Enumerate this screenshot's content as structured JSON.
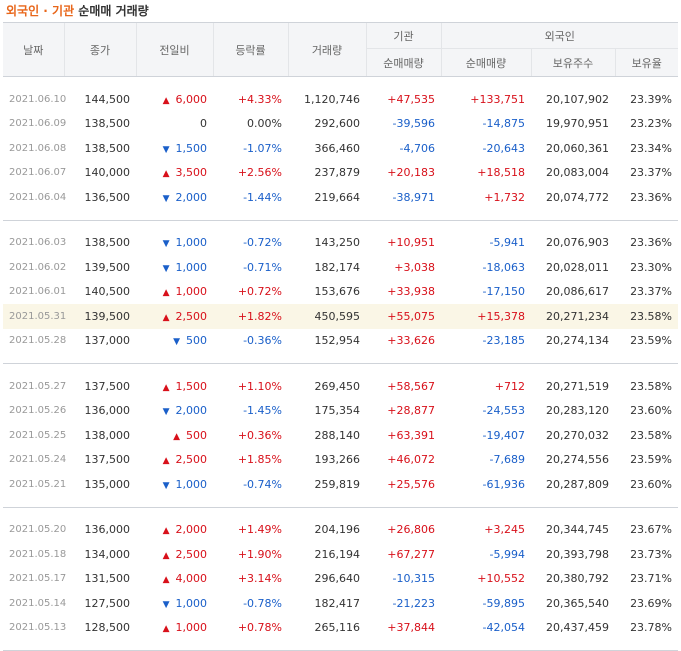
{
  "title": {
    "part1": "외국인 · 기관",
    "part2": " 순매매 거래량"
  },
  "headers": {
    "date": "날짜",
    "close": "종가",
    "change": "전일비",
    "rate": "등락률",
    "volume": "거래량",
    "inst": "기관",
    "foreign": "외국인",
    "inst_net": "순매매량",
    "foreign_net": "순매매량",
    "foreign_hold": "보유주수",
    "foreign_ratio": "보유율"
  },
  "groups": [
    [
      {
        "date": "2021.06.10",
        "close": "144,500",
        "dir": "up",
        "change": "6,000",
        "rate": "+4.33%",
        "volume": "1,120,746",
        "inst": "+47,535",
        "foreign": "+133,751",
        "hold": "20,107,902",
        "ratio": "23.39%"
      },
      {
        "date": "2021.06.09",
        "close": "138,500",
        "dir": "flat",
        "change": "0",
        "rate": "0.00%",
        "volume": "292,600",
        "inst": "-39,596",
        "foreign": "-14,875",
        "hold": "19,970,951",
        "ratio": "23.23%"
      },
      {
        "date": "2021.06.08",
        "close": "138,500",
        "dir": "down",
        "change": "1,500",
        "rate": "-1.07%",
        "volume": "366,460",
        "inst": "-4,706",
        "foreign": "-20,643",
        "hold": "20,060,361",
        "ratio": "23.34%"
      },
      {
        "date": "2021.06.07",
        "close": "140,000",
        "dir": "up",
        "change": "3,500",
        "rate": "+2.56%",
        "volume": "237,879",
        "inst": "+20,183",
        "foreign": "+18,518",
        "hold": "20,083,004",
        "ratio": "23.37%"
      },
      {
        "date": "2021.06.04",
        "close": "136,500",
        "dir": "down",
        "change": "2,000",
        "rate": "-1.44%",
        "volume": "219,664",
        "inst": "-38,971",
        "foreign": "+1,732",
        "hold": "20,074,772",
        "ratio": "23.36%"
      }
    ],
    [
      {
        "date": "2021.06.03",
        "close": "138,500",
        "dir": "down",
        "change": "1,000",
        "rate": "-0.72%",
        "volume": "143,250",
        "inst": "+10,951",
        "foreign": "-5,941",
        "hold": "20,076,903",
        "ratio": "23.36%"
      },
      {
        "date": "2021.06.02",
        "close": "139,500",
        "dir": "down",
        "change": "1,000",
        "rate": "-0.71%",
        "volume": "182,174",
        "inst": "+3,038",
        "foreign": "-18,063",
        "hold": "20,028,011",
        "ratio": "23.30%"
      },
      {
        "date": "2021.06.01",
        "close": "140,500",
        "dir": "up",
        "change": "1,000",
        "rate": "+0.72%",
        "volume": "153,676",
        "inst": "+33,938",
        "foreign": "-17,150",
        "hold": "20,086,617",
        "ratio": "23.37%"
      },
      {
        "date": "2021.05.31",
        "close": "139,500",
        "dir": "up",
        "change": "2,500",
        "rate": "+1.82%",
        "volume": "450,595",
        "inst": "+55,075",
        "foreign": "+15,378",
        "hold": "20,271,234",
        "ratio": "23.58%",
        "highlight": true
      },
      {
        "date": "2021.05.28",
        "close": "137,000",
        "dir": "down",
        "change": "500",
        "rate": "-0.36%",
        "volume": "152,954",
        "inst": "+33,626",
        "foreign": "-23,185",
        "hold": "20,274,134",
        "ratio": "23.59%"
      }
    ],
    [
      {
        "date": "2021.05.27",
        "close": "137,500",
        "dir": "up",
        "change": "1,500",
        "rate": "+1.10%",
        "volume": "269,450",
        "inst": "+58,567",
        "foreign": "+712",
        "hold": "20,271,519",
        "ratio": "23.58%"
      },
      {
        "date": "2021.05.26",
        "close": "136,000",
        "dir": "down",
        "change": "2,000",
        "rate": "-1.45%",
        "volume": "175,354",
        "inst": "+28,877",
        "foreign": "-24,553",
        "hold": "20,283,120",
        "ratio": "23.60%"
      },
      {
        "date": "2021.05.25",
        "close": "138,000",
        "dir": "up",
        "change": "500",
        "rate": "+0.36%",
        "volume": "288,140",
        "inst": "+63,391",
        "foreign": "-19,407",
        "hold": "20,270,032",
        "ratio": "23.58%"
      },
      {
        "date": "2021.05.24",
        "close": "137,500",
        "dir": "up",
        "change": "2,500",
        "rate": "+1.85%",
        "volume": "193,266",
        "inst": "+46,072",
        "foreign": "-7,689",
        "hold": "20,274,556",
        "ratio": "23.59%"
      },
      {
        "date": "2021.05.21",
        "close": "135,000",
        "dir": "down",
        "change": "1,000",
        "rate": "-0.74%",
        "volume": "259,819",
        "inst": "+25,576",
        "foreign": "-61,936",
        "hold": "20,287,809",
        "ratio": "23.60%"
      }
    ],
    [
      {
        "date": "2021.05.20",
        "close": "136,000",
        "dir": "up",
        "change": "2,000",
        "rate": "+1.49%",
        "volume": "204,196",
        "inst": "+26,806",
        "foreign": "+3,245",
        "hold": "20,344,745",
        "ratio": "23.67%"
      },
      {
        "date": "2021.05.18",
        "close": "134,000",
        "dir": "up",
        "change": "2,500",
        "rate": "+1.90%",
        "volume": "216,194",
        "inst": "+67,277",
        "foreign": "-5,994",
        "hold": "20,393,798",
        "ratio": "23.73%"
      },
      {
        "date": "2021.05.17",
        "close": "131,500",
        "dir": "up",
        "change": "4,000",
        "rate": "+3.14%",
        "volume": "296,640",
        "inst": "-10,315",
        "foreign": "+10,552",
        "hold": "20,380,792",
        "ratio": "23.71%"
      },
      {
        "date": "2021.05.14",
        "close": "127,500",
        "dir": "down",
        "change": "1,000",
        "rate": "-0.78%",
        "volume": "182,417",
        "inst": "-21,223",
        "foreign": "-59,895",
        "hold": "20,365,540",
        "ratio": "23.69%"
      },
      {
        "date": "2021.05.13",
        "close": "128,500",
        "dir": "up",
        "change": "1,000",
        "rate": "+0.78%",
        "volume": "265,116",
        "inst": "+37,844",
        "foreign": "-42,054",
        "hold": "20,437,459",
        "ratio": "23.78%"
      }
    ]
  ],
  "colors": {
    "up": "#d8101a",
    "down": "#1a5fc9",
    "flat": "#333333",
    "title_accent": "#e8661a",
    "highlight_row": "#faf6e6"
  },
  "icons": {
    "up": "up-triangle-icon",
    "down": "down-triangle-icon"
  }
}
